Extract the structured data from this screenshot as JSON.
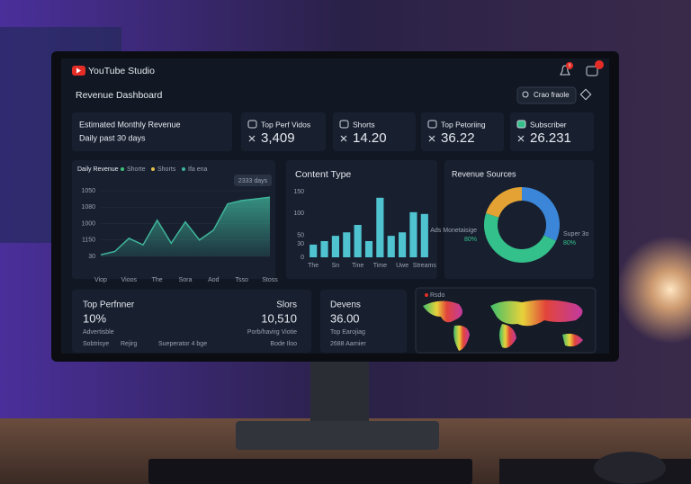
{
  "header": {
    "brand": "YouTube Studio",
    "title": "Revenue Dashboard",
    "search": "Crao fraole",
    "badge": "9"
  },
  "kpis": [
    {
      "label": "Estimated Monthly Revenue",
      "sub": "Daily past 30 days"
    },
    {
      "label": "Top Perf Vidos",
      "value": "3,409"
    },
    {
      "label": "Shorts",
      "value": "14.20"
    },
    {
      "label": "Top Petoriing",
      "value": "36.22"
    },
    {
      "label": "Subscriber",
      "value": "26.231"
    }
  ],
  "chart_data": [
    {
      "type": "area",
      "title": "Daily Revenue",
      "legend": [
        {
          "name": "Shorte",
          "color": "#3fbf7a"
        },
        {
          "name": "Shorts",
          "color": "#e3c04a"
        },
        {
          "name": "Ifa ena",
          "color": "#3fb59a"
        }
      ],
      "annotation": "2333 days",
      "x": [
        0,
        1,
        2,
        3,
        4,
        5,
        6,
        7,
        8,
        9,
        10,
        11,
        12
      ],
      "values": [
        0.1,
        0.3,
        1.1,
        0.7,
        2.2,
        0.8,
        2.1,
        1.0,
        1.6,
        3.2,
        3.4,
        3.5,
        3.6
      ],
      "color": "#3fb59a",
      "xlim": [
        0,
        12
      ],
      "xticks": [
        {
          "value": 0,
          "label": "Viop"
        },
        {
          "value": 2,
          "label": "Vioos"
        },
        {
          "value": 4,
          "label": "The"
        },
        {
          "value": 6,
          "label": "Sora"
        },
        {
          "value": 8,
          "label": "Aod"
        },
        {
          "value": 10,
          "label": "Tsso"
        },
        {
          "value": 12,
          "label": "Stoss"
        }
      ],
      "ylim": [
        0,
        4
      ],
      "yticks": [
        {
          "value": 0,
          "label": "30"
        },
        {
          "value": 1,
          "label": "1150"
        },
        {
          "value": 2,
          "label": "1000"
        },
        {
          "value": 3,
          "label": "1080"
        },
        {
          "value": 4,
          "label": "1050"
        }
      ]
    },
    {
      "type": "bar",
      "title": "Content Type",
      "categories": [
        "The",
        null,
        "Sn",
        null,
        "Tine",
        null,
        "Time",
        null,
        "Uwe",
        null,
        "Streams"
      ],
      "values": [
        29,
        37,
        49,
        57,
        74,
        37,
        136,
        49,
        57,
        103,
        99
      ],
      "color": "#4fc3d0",
      "ylim": [
        0,
        150
      ],
      "yticks": [
        0,
        30,
        50,
        100,
        150
      ]
    },
    {
      "type": "pie",
      "title": "Revenue Sources",
      "values": [
        32,
        48,
        20
      ],
      "colors": [
        "#3b86d8",
        "#34c08a",
        "#e3a233"
      ],
      "annotations": [
        {
          "text": "Ads Monetaisige",
          "value": "80%"
        },
        {
          "text": "Super 3o",
          "value": "80%"
        }
      ]
    }
  ],
  "panels": [
    {
      "title": "Top Perfnner",
      "value": "10%",
      "sub": "Advertisble",
      "items": [
        "Sobtrisye",
        "Rejirg",
        "Sueperator 4 bge"
      ]
    },
    {
      "title": "Slors",
      "value": "10,510",
      "sub": "Porb/havirg Viotie",
      "items": [
        "Bode Iloo"
      ]
    },
    {
      "title": "Devens",
      "value": "36.00",
      "sub": "Top Earojiag",
      "items": [
        "2688 Aarnier"
      ]
    },
    {
      "title": "Rsdo"
    }
  ]
}
